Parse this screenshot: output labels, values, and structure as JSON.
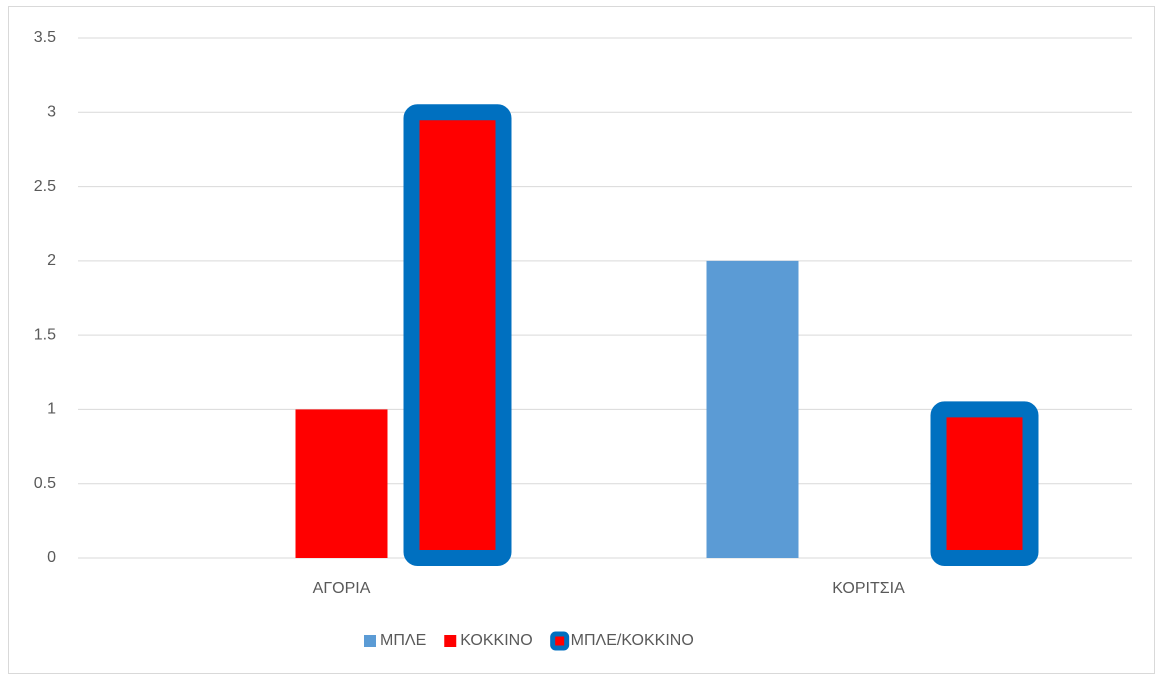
{
  "chart_data": {
    "type": "bar",
    "categories": [
      "ΑΓΟΡΙΑ",
      "ΚΟΡΙΤΣΙΑ"
    ],
    "series": [
      {
        "name": "ΜΠΛΕ",
        "color": "#5b9bd5",
        "values": [
          0,
          2
        ]
      },
      {
        "name": "ΚΟΚΚΙΝΟ",
        "color": "#ff0000",
        "values": [
          1,
          0
        ]
      },
      {
        "name": "ΜΠΛΕ/ΚΟΚΚΙΝΟ",
        "color": "#ff0000",
        "border_color": "#0070c0",
        "values": [
          3,
          1
        ]
      }
    ],
    "ylim": [
      0,
      3.5
    ],
    "yticks": [
      0,
      0.5,
      1,
      1.5,
      2,
      2.5,
      3,
      3.5
    ],
    "grid": true,
    "legend": "bottom"
  }
}
